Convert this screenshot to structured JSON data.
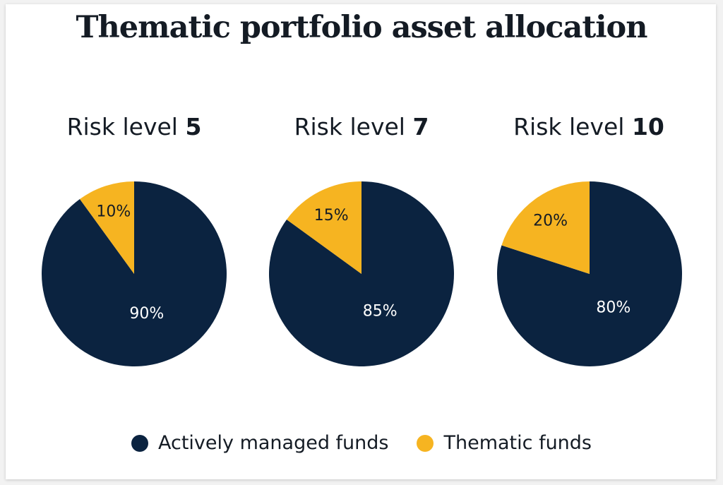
{
  "title": "Thematic portfolio asset allocation",
  "colors": {
    "actively_managed": "#0b2340",
    "thematic": "#f6b421"
  },
  "legend": [
    {
      "label": "Actively managed funds",
      "color": "#0b2340"
    },
    {
      "label": "Thematic funds",
      "color": "#f6b421"
    }
  ],
  "chart_data": [
    {
      "type": "pie",
      "title_prefix": "Risk level",
      "title_number": "5",
      "slices": [
        {
          "name": "Actively managed funds",
          "value": 90,
          "label": "90%"
        },
        {
          "name": "Thematic funds",
          "value": 10,
          "label": "10%"
        }
      ]
    },
    {
      "type": "pie",
      "title_prefix": "Risk level",
      "title_number": "7",
      "slices": [
        {
          "name": "Actively managed funds",
          "value": 85,
          "label": "85%"
        },
        {
          "name": "Thematic funds",
          "value": 15,
          "label": "15%"
        }
      ]
    },
    {
      "type": "pie",
      "title_prefix": "Risk level",
      "title_number": "10",
      "slices": [
        {
          "name": "Actively managed funds",
          "value": 80,
          "label": "80%"
        },
        {
          "name": "Thematic funds",
          "value": 20,
          "label": "20%"
        }
      ]
    }
  ]
}
